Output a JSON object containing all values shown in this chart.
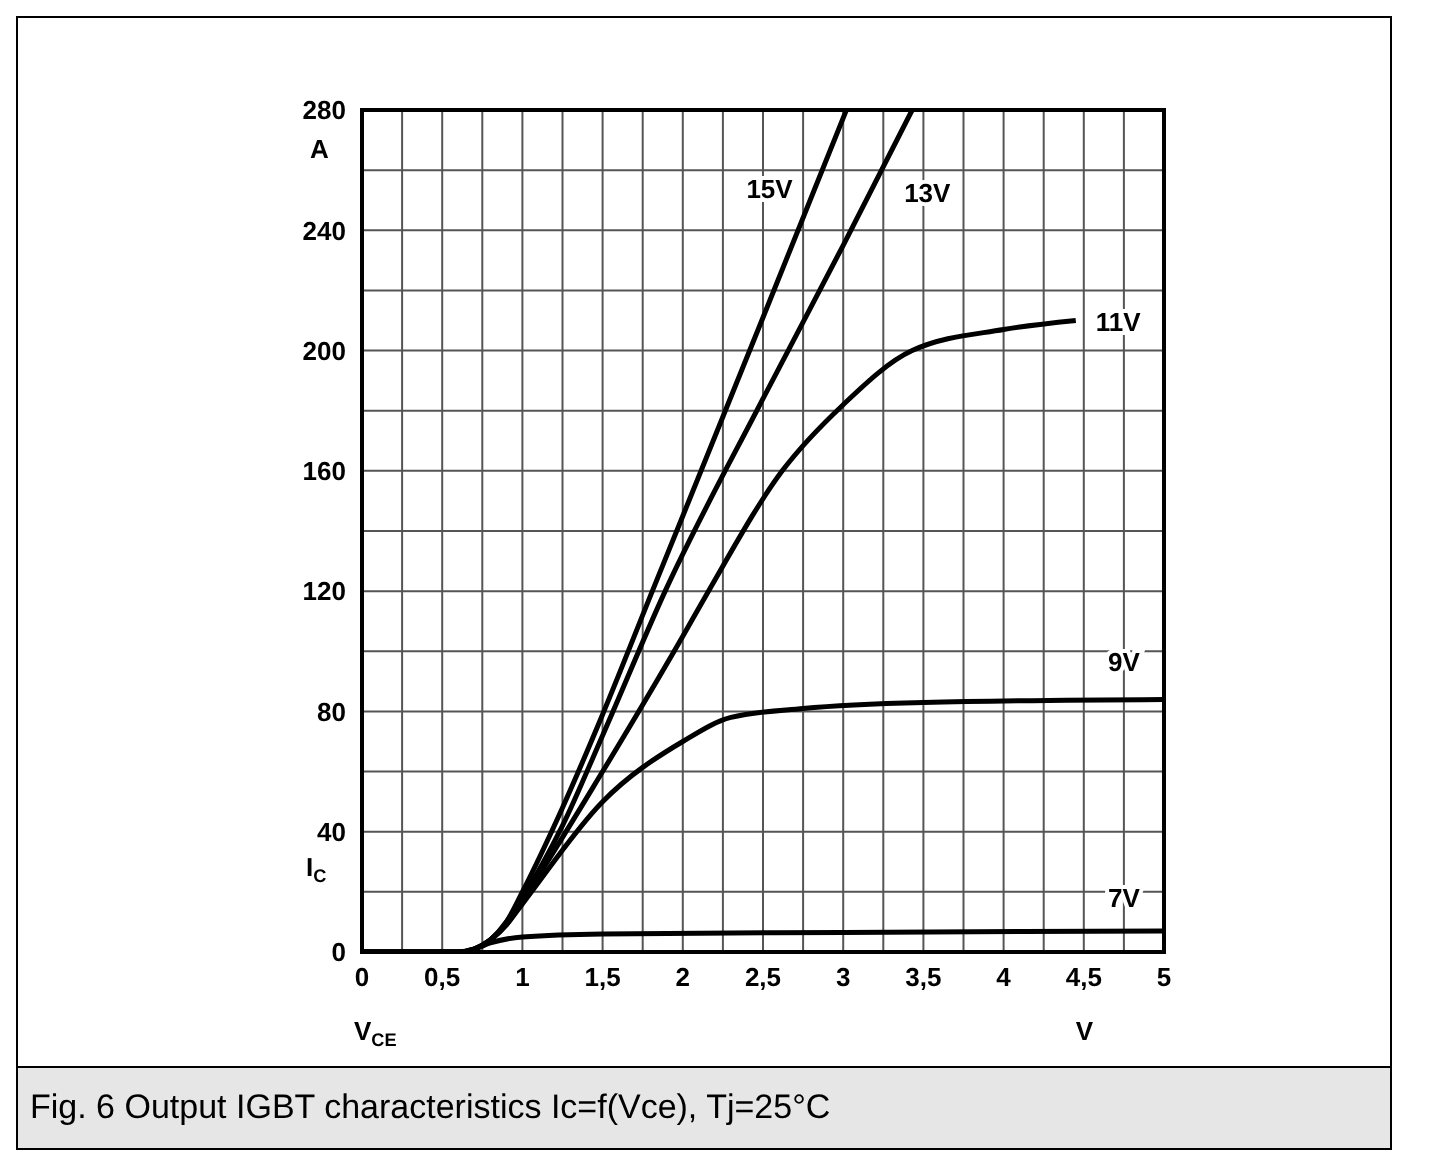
{
  "chart_data": {
    "type": "line",
    "title": "Fig. 6 Output IGBT characteristics Ic=f(Vce), Tj=25°C",
    "xlabel": "V$_{CE}$",
    "ylabel": "I$_{C}$",
    "annotations": [
      "A",
      "V"
    ],
    "xlim": [
      0,
      5
    ],
    "ylim": [
      0,
      280
    ],
    "xticks": [
      0,
      {
        "value": 0.25,
        "label": null
      },
      {
        "value": 0.5,
        "label": "0,5"
      },
      {
        "value": 0.75,
        "label": null
      },
      1,
      {
        "value": 1.25,
        "label": null
      },
      {
        "value": 1.5,
        "label": "1,5"
      },
      {
        "value": 1.75,
        "label": null
      },
      2,
      {
        "value": 2.25,
        "label": null
      },
      {
        "value": 2.5,
        "label": "2,5"
      },
      {
        "value": 2.75,
        "label": null
      },
      3,
      {
        "value": 3.25,
        "label": null
      },
      {
        "value": 3.5,
        "label": "3,5"
      },
      {
        "value": 3.75,
        "label": null
      },
      4,
      {
        "value": 4.25,
        "label": null
      },
      {
        "value": 4.5,
        "label": "4,5"
      },
      {
        "value": 4.75,
        "label": null
      },
      5
    ],
    "yticks": [
      0,
      {
        "value": 20,
        "label": null
      },
      40,
      {
        "value": 60,
        "label": null
      },
      80,
      {
        "value": 100,
        "label": null
      },
      120,
      {
        "value": 140,
        "label": null
      },
      160,
      {
        "value": 180,
        "label": null
      },
      200,
      {
        "value": 220,
        "label": null
      },
      240,
      {
        "value": 260,
        "label": null
      },
      280
    ],
    "grid": true,
    "legend": false,
    "marker": "none",
    "line_style": "solid",
    "series": [
      {
        "name": "15V",
        "color": "#000000",
        "x": [
          0,
          0.6,
          0.7,
          0.8,
          0.9,
          1,
          1.25,
          1.5,
          1.81,
          2,
          2.5,
          3.02
        ],
        "values": [
          0,
          0,
          1,
          4,
          10,
          20,
          48,
          79,
          120,
          145,
          211,
          280
        ]
      },
      {
        "name": "13V",
        "color": "#000000",
        "x": [
          0,
          0.6,
          0.7,
          0.8,
          0.9,
          1,
          1.25,
          1.5,
          1.89,
          2.5,
          3,
          3.43
        ],
        "values": [
          0,
          0,
          1,
          4,
          10,
          18,
          42,
          72,
          120,
          184,
          235,
          280
        ]
      },
      {
        "name": "11V",
        "color": "#000000",
        "x": [
          0,
          0.6,
          0.7,
          0.8,
          0.9,
          1,
          1.5,
          2,
          2.16,
          2.62,
          3,
          3.43,
          4,
          4.45
        ],
        "values": [
          0,
          0,
          1,
          4,
          9,
          17,
          60,
          105,
          120,
          160,
          182,
          200,
          207,
          210
        ]
      },
      {
        "name": "9V",
        "color": "#000000",
        "x": [
          0,
          0.6,
          0.7,
          0.8,
          0.9,
          1,
          1.5,
          2,
          2.3,
          2.75,
          3.5,
          5
        ],
        "values": [
          0,
          0,
          1,
          4,
          9,
          16,
          50,
          70,
          78,
          81,
          83,
          84
        ]
      },
      {
        "name": "7V",
        "color": "#000000",
        "x": [
          0,
          0.6,
          0.7,
          0.8,
          1,
          1.5,
          3,
          5
        ],
        "values": [
          0,
          0,
          1,
          3,
          5,
          6,
          6.5,
          7
        ]
      }
    ]
  }
}
